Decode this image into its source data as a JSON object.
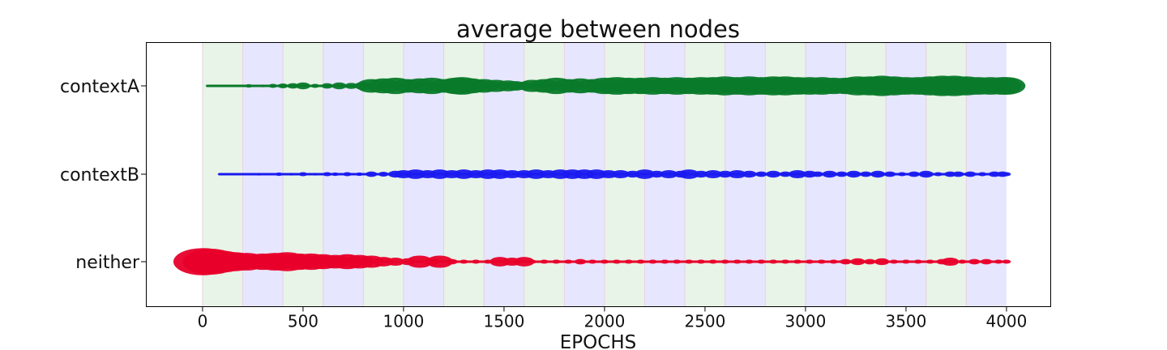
{
  "chart_data": {
    "type": "scatter",
    "title": "average between nodes",
    "xlabel": "EPOCHS",
    "ylabel": "",
    "xlim": [
      -280,
      4220
    ],
    "xticks": [
      0,
      500,
      1000,
      1500,
      2000,
      2500,
      3000,
      3500,
      4000
    ],
    "categories": [
      "contextA",
      "contextB",
      "neither"
    ],
    "background_bands": {
      "width": 200,
      "colors": [
        "#e8f4e8",
        "#e6e6ff"
      ],
      "start": 0,
      "end": 4000
    },
    "grid": false,
    "series": [
      {
        "name": "contextA",
        "color": "#0a7a2a",
        "points": [
          [
            20,
            1
          ],
          [
            100,
            1.5
          ],
          [
            180,
            2
          ],
          [
            230,
            5
          ],
          [
            300,
            4
          ],
          [
            350,
            6
          ],
          [
            400,
            7
          ],
          [
            450,
            8
          ],
          [
            500,
            10
          ],
          [
            560,
            6
          ],
          [
            620,
            8
          ],
          [
            680,
            10
          ],
          [
            740,
            9
          ],
          [
            800,
            12
          ],
          [
            840,
            20
          ],
          [
            900,
            22
          ],
          [
            960,
            24
          ],
          [
            1020,
            20
          ],
          [
            1080,
            22
          ],
          [
            1140,
            24
          ],
          [
            1200,
            20
          ],
          [
            1260,
            24
          ],
          [
            1290,
            26
          ],
          [
            1340,
            22
          ],
          [
            1400,
            20
          ],
          [
            1460,
            18
          ],
          [
            1520,
            16
          ],
          [
            1560,
            14
          ],
          [
            1600,
            12
          ],
          [
            1640,
            18
          ],
          [
            1700,
            20
          ],
          [
            1760,
            24
          ],
          [
            1820,
            20
          ],
          [
            1880,
            22
          ],
          [
            1940,
            20
          ],
          [
            2000,
            24
          ],
          [
            2060,
            26
          ],
          [
            2120,
            24
          ],
          [
            2180,
            24
          ],
          [
            2240,
            26
          ],
          [
            2300,
            24
          ],
          [
            2360,
            26
          ],
          [
            2420,
            24
          ],
          [
            2480,
            26
          ],
          [
            2540,
            26
          ],
          [
            2600,
            28
          ],
          [
            2660,
            26
          ],
          [
            2720,
            28
          ],
          [
            2780,
            26
          ],
          [
            2840,
            28
          ],
          [
            2900,
            28
          ],
          [
            2960,
            26
          ],
          [
            3020,
            26
          ],
          [
            3080,
            26
          ],
          [
            3140,
            24
          ],
          [
            3200,
            24
          ],
          [
            3260,
            28
          ],
          [
            3320,
            28
          ],
          [
            3380,
            30
          ],
          [
            3440,
            28
          ],
          [
            3500,
            26
          ],
          [
            3560,
            26
          ],
          [
            3620,
            28
          ],
          [
            3680,
            30
          ],
          [
            3740,
            30
          ],
          [
            3800,
            28
          ],
          [
            3860,
            26
          ],
          [
            3920,
            26
          ],
          [
            3980,
            26
          ],
          [
            4000,
            26
          ]
        ]
      },
      {
        "name": "contextB",
        "color": "#1a1af0",
        "points": [
          [
            80,
            1
          ],
          [
            200,
            2
          ],
          [
            280,
            4
          ],
          [
            320,
            3
          ],
          [
            380,
            5
          ],
          [
            440,
            4
          ],
          [
            500,
            6
          ],
          [
            560,
            4
          ],
          [
            620,
            6
          ],
          [
            660,
            5
          ],
          [
            720,
            6
          ],
          [
            780,
            5
          ],
          [
            840,
            8
          ],
          [
            900,
            7
          ],
          [
            960,
            10
          ],
          [
            1000,
            12
          ],
          [
            1060,
            14
          ],
          [
            1120,
            12
          ],
          [
            1180,
            14
          ],
          [
            1240,
            12
          ],
          [
            1300,
            14
          ],
          [
            1360,
            12
          ],
          [
            1420,
            14
          ],
          [
            1480,
            14
          ],
          [
            1540,
            12
          ],
          [
            1600,
            12
          ],
          [
            1660,
            14
          ],
          [
            1720,
            12
          ],
          [
            1780,
            14
          ],
          [
            1840,
            14
          ],
          [
            1900,
            14
          ],
          [
            1960,
            14
          ],
          [
            2020,
            12
          ],
          [
            2080,
            12
          ],
          [
            2140,
            10
          ],
          [
            2200,
            14
          ],
          [
            2260,
            10
          ],
          [
            2320,
            12
          ],
          [
            2380,
            10
          ],
          [
            2420,
            14
          ],
          [
            2480,
            10
          ],
          [
            2540,
            12
          ],
          [
            2600,
            10
          ],
          [
            2660,
            12
          ],
          [
            2720,
            10
          ],
          [
            2780,
            8
          ],
          [
            2840,
            10
          ],
          [
            2900,
            8
          ],
          [
            2960,
            12
          ],
          [
            3020,
            10
          ],
          [
            3060,
            8
          ],
          [
            3120,
            10
          ],
          [
            3180,
            8
          ],
          [
            3240,
            10
          ],
          [
            3300,
            8
          ],
          [
            3360,
            10
          ],
          [
            3420,
            8
          ],
          [
            3480,
            6
          ],
          [
            3540,
            8
          ],
          [
            3600,
            10
          ],
          [
            3660,
            6
          ],
          [
            3720,
            8
          ],
          [
            3760,
            8
          ],
          [
            3820,
            8
          ],
          [
            3880,
            6
          ],
          [
            3940,
            8
          ],
          [
            3980,
            8
          ],
          [
            4000,
            6
          ]
        ]
      },
      {
        "name": "neither",
        "color": "#e8002a",
        "points": [
          [
            0,
            40
          ],
          [
            40,
            38
          ],
          [
            100,
            32
          ],
          [
            160,
            28
          ],
          [
            220,
            26
          ],
          [
            300,
            24
          ],
          [
            360,
            26
          ],
          [
            420,
            28
          ],
          [
            480,
            24
          ],
          [
            540,
            24
          ],
          [
            600,
            22
          ],
          [
            660,
            20
          ],
          [
            720,
            22
          ],
          [
            780,
            20
          ],
          [
            840,
            18
          ],
          [
            900,
            14
          ],
          [
            960,
            12
          ],
          [
            1020,
            10
          ],
          [
            1080,
            18
          ],
          [
            1140,
            10
          ],
          [
            1180,
            18
          ],
          [
            1240,
            8
          ],
          [
            1300,
            6
          ],
          [
            1360,
            6
          ],
          [
            1420,
            6
          ],
          [
            1480,
            14
          ],
          [
            1540,
            12
          ],
          [
            1600,
            14
          ],
          [
            1640,
            6
          ],
          [
            1700,
            6
          ],
          [
            1760,
            6
          ],
          [
            1820,
            6
          ],
          [
            1880,
            8
          ],
          [
            1940,
            6
          ],
          [
            2000,
            6
          ],
          [
            2060,
            6
          ],
          [
            2120,
            6
          ],
          [
            2180,
            6
          ],
          [
            2240,
            6
          ],
          [
            2300,
            6
          ],
          [
            2360,
            6
          ],
          [
            2420,
            6
          ],
          [
            2480,
            6
          ],
          [
            2540,
            6
          ],
          [
            2600,
            6
          ],
          [
            2660,
            6
          ],
          [
            2720,
            6
          ],
          [
            2780,
            6
          ],
          [
            2840,
            6
          ],
          [
            2900,
            6
          ],
          [
            2960,
            6
          ],
          [
            3020,
            6
          ],
          [
            3080,
            6
          ],
          [
            3140,
            6
          ],
          [
            3200,
            8
          ],
          [
            3260,
            10
          ],
          [
            3320,
            8
          ],
          [
            3380,
            10
          ],
          [
            3440,
            6
          ],
          [
            3500,
            6
          ],
          [
            3560,
            6
          ],
          [
            3620,
            6
          ],
          [
            3680,
            8
          ],
          [
            3720,
            12
          ],
          [
            3780,
            6
          ],
          [
            3840,
            8
          ],
          [
            3900,
            8
          ],
          [
            3960,
            6
          ],
          [
            4000,
            6
          ]
        ]
      }
    ]
  }
}
